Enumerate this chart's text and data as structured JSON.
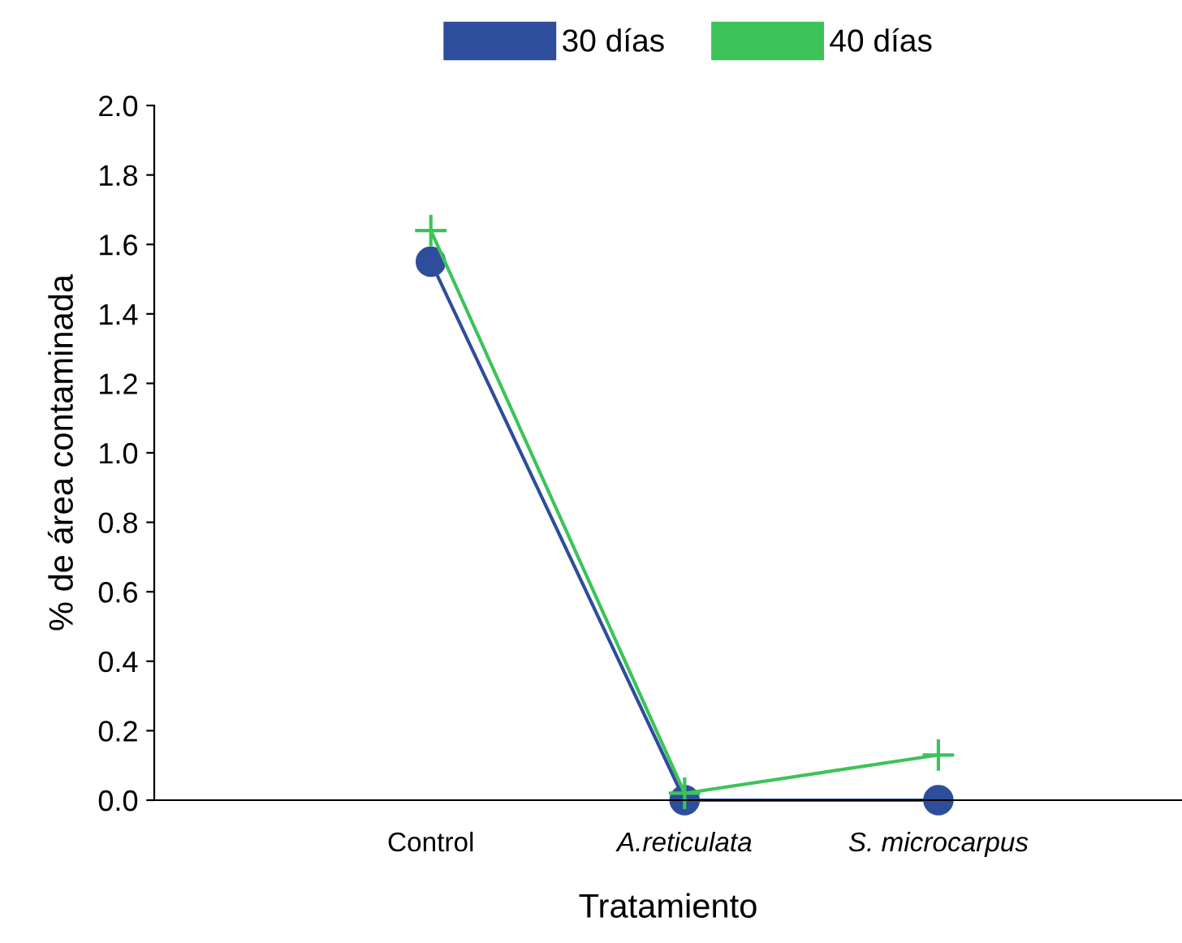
{
  "chart_data": {
    "type": "line",
    "xlabel": "Tratamiento",
    "ylabel": "% de área contaminada",
    "categories": [
      "Control",
      "A.reticulata",
      "S. microcarpus"
    ],
    "series": [
      {
        "name": "30 días",
        "color": "#2e4d9a",
        "marker": "circle",
        "values": [
          1.55,
          0,
          0
        ]
      },
      {
        "name": "40 días",
        "color": "#3cc35a",
        "marker": "cross",
        "values": [
          1.64,
          0.02,
          0.13
        ]
      }
    ],
    "ylim": [
      0,
      2.0
    ],
    "yticks": [
      {
        "value": 0,
        "label": "0.0"
      },
      {
        "value": 0.2,
        "label": "0.2"
      },
      {
        "value": 0.4,
        "label": "0.4"
      },
      {
        "value": 0.6,
        "label": "0.6"
      },
      {
        "value": 0.8,
        "label": "0.8"
      },
      {
        "value": 1.0,
        "label": "1.0"
      },
      {
        "value": 1.2,
        "label": "1.2"
      },
      {
        "value": 1.4,
        "label": "1.4"
      },
      {
        "value": 1.6,
        "label": "1.6"
      },
      {
        "value": 1.8,
        "label": "1.8"
      },
      {
        "value": 2.0,
        "label": "2.0"
      }
    ],
    "grid": false,
    "legend": "top",
    "line_style": "solid"
  }
}
